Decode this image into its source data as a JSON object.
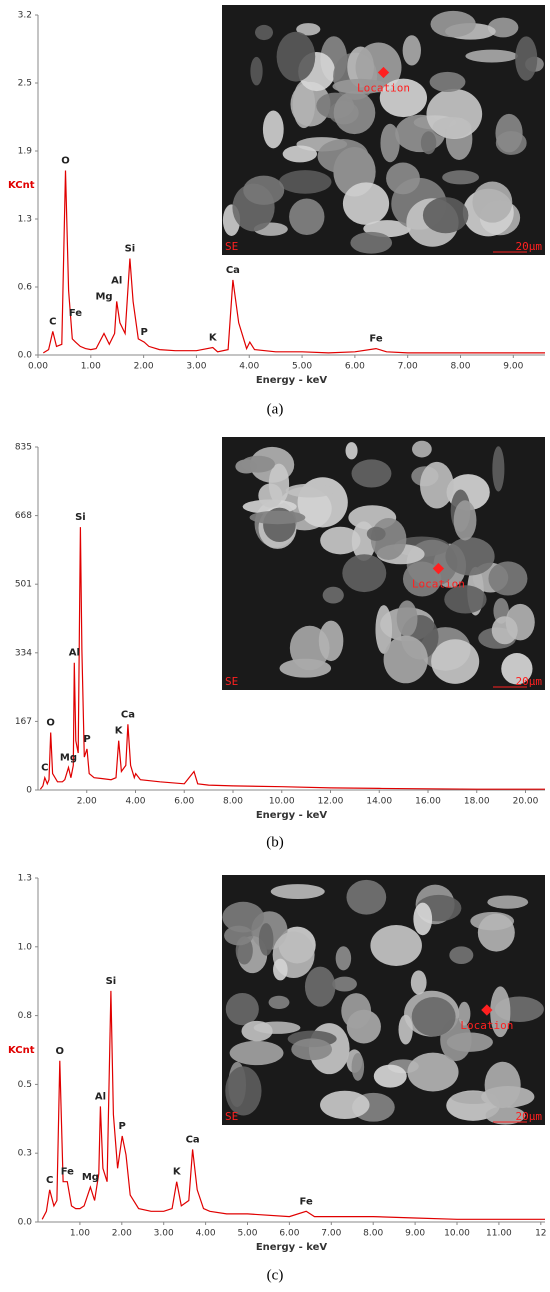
{
  "chart_data": [
    {
      "type": "line",
      "caption": "(a)",
      "x_label": "Energy - keV",
      "y_label": "KCnt",
      "color": "#e00000",
      "xlim": [
        0,
        9.6
      ],
      "ylim": [
        0,
        3.17
      ],
      "xticks": [
        {
          "value": 0,
          "label": "0.00"
        },
        {
          "value": 1,
          "label": "1.00"
        },
        {
          "value": 2,
          "label": "2.00"
        },
        {
          "value": 3,
          "label": "3.00"
        },
        {
          "value": 4,
          "label": "4.00"
        },
        {
          "value": 5,
          "label": "5.00"
        },
        {
          "value": 6,
          "label": "6.00"
        },
        {
          "value": 7,
          "label": "7.00"
        },
        {
          "value": 8,
          "label": "8.00"
        },
        {
          "value": 9,
          "label": "9.00"
        }
      ],
      "yticks": [
        {
          "value": 0,
          "label": "0.0"
        },
        {
          "value": 0.634,
          "label": "0.6"
        },
        {
          "value": 1.268,
          "label": "1.3"
        },
        {
          "value": 1.902,
          "label": "1.9"
        },
        {
          "value": 2.536,
          "label": "2.5"
        },
        {
          "value": 3.17,
          "label": "3.2"
        }
      ],
      "x": [
        0.1,
        0.2,
        0.28,
        0.35,
        0.45,
        0.52,
        0.58,
        0.65,
        0.71,
        0.8,
        0.9,
        1.0,
        1.1,
        1.25,
        1.35,
        1.45,
        1.49,
        1.55,
        1.65,
        1.74,
        1.8,
        1.9,
        2.01,
        2.1,
        2.3,
        2.6,
        3.0,
        3.31,
        3.4,
        3.6,
        3.69,
        3.8,
        3.95,
        4.01,
        4.1,
        4.5,
        5.0,
        5.5,
        6.0,
        6.4,
        6.6,
        7.0,
        8.0,
        9.0,
        9.6
      ],
      "values": [
        0.02,
        0.05,
        0.22,
        0.08,
        0.1,
        1.72,
        0.6,
        0.15,
        0.12,
        0.08,
        0.06,
        0.05,
        0.06,
        0.2,
        0.1,
        0.2,
        0.5,
        0.3,
        0.2,
        0.9,
        0.5,
        0.15,
        0.12,
        0.08,
        0.05,
        0.04,
        0.04,
        0.07,
        0.03,
        0.05,
        0.7,
        0.3,
        0.06,
        0.12,
        0.05,
        0.03,
        0.03,
        0.02,
        0.03,
        0.06,
        0.03,
        0.02,
        0.02,
        0.02,
        0.02
      ],
      "annotations": [
        {
          "text": "C",
          "x": 0.28,
          "y": 0.22
        },
        {
          "text": "O",
          "x": 0.52,
          "y": 1.72
        },
        {
          "text": "Fe",
          "x": 0.71,
          "y": 0.3
        },
        {
          "text": "Mg",
          "x": 1.25,
          "y": 0.45
        },
        {
          "text": "Al",
          "x": 1.49,
          "y": 0.6
        },
        {
          "text": "Si",
          "x": 1.74,
          "y": 0.9
        },
        {
          "text": "P",
          "x": 2.01,
          "y": 0.12
        },
        {
          "text": "K",
          "x": 3.31,
          "y": 0.07
        },
        {
          "text": "Ca",
          "x": 3.69,
          "y": 0.7
        },
        {
          "text": "Fe",
          "x": 6.4,
          "y": 0.06
        }
      ],
      "inset_labels": {
        "marker": "Location",
        "detector": "SE",
        "scale": "20µm"
      }
    },
    {
      "type": "line",
      "caption": "(b)",
      "x_label": "Energy - keV",
      "color": "#e00000",
      "xlim": [
        0,
        20.8
      ],
      "ylim": [
        0,
        835
      ],
      "xticks": [
        {
          "value": 2,
          "label": "2.00"
        },
        {
          "value": 4,
          "label": "4.00"
        },
        {
          "value": 6,
          "label": "6.00"
        },
        {
          "value": 8,
          "label": "8.00"
        },
        {
          "value": 10,
          "label": "10.00"
        },
        {
          "value": 12,
          "label": "12.00"
        },
        {
          "value": 14,
          "label": "14.00"
        },
        {
          "value": 16,
          "label": "16.00"
        },
        {
          "value": 18,
          "label": "18.00"
        },
        {
          "value": 20,
          "label": "20.00"
        }
      ],
      "yticks": [
        0,
        167,
        334,
        501,
        668,
        835
      ],
      "x": [
        0.1,
        0.2,
        0.28,
        0.38,
        0.45,
        0.52,
        0.6,
        0.8,
        1.0,
        1.1,
        1.25,
        1.35,
        1.45,
        1.49,
        1.55,
        1.65,
        1.74,
        1.8,
        1.9,
        2.01,
        2.1,
        2.3,
        2.6,
        3.0,
        3.2,
        3.31,
        3.42,
        3.6,
        3.69,
        3.8,
        3.95,
        4.01,
        4.2,
        5.0,
        6.0,
        6.4,
        6.55,
        7.0,
        8.0,
        10.0,
        12.0,
        14.0,
        16.0,
        18.0,
        20.8
      ],
      "values": [
        2,
        10,
        30,
        15,
        25,
        140,
        40,
        20,
        20,
        25,
        55,
        30,
        60,
        310,
        120,
        90,
        640,
        340,
        80,
        100,
        40,
        30,
        28,
        25,
        30,
        120,
        45,
        60,
        160,
        60,
        30,
        40,
        25,
        20,
        15,
        45,
        15,
        12,
        10,
        8,
        5,
        4,
        3,
        2,
        2
      ],
      "annotations": [
        {
          "text": "C",
          "x": 0.28,
          "y": 30
        },
        {
          "text": "O",
          "x": 0.52,
          "y": 140
        },
        {
          "text": "Mg",
          "x": 1.25,
          "y": 55
        },
        {
          "text": "Al",
          "x": 1.49,
          "y": 310
        },
        {
          "text": "Si",
          "x": 1.74,
          "y": 640
        },
        {
          "text": "P",
          "x": 2.01,
          "y": 100
        },
        {
          "text": "K",
          "x": 3.31,
          "y": 120
        },
        {
          "text": "Ca",
          "x": 3.69,
          "y": 160
        }
      ],
      "inset_labels": {
        "marker": "Location",
        "detector": "SE",
        "scale": "20µm"
      }
    },
    {
      "type": "line",
      "caption": "(c)",
      "x_label": "Energy - keV",
      "y_label": "KCnt",
      "color": "#e00000",
      "xlim": [
        0,
        12.1
      ],
      "ylim": [
        0,
        1.28
      ],
      "xticks": [
        {
          "value": 1,
          "label": "1.00"
        },
        {
          "value": 2,
          "label": "2.00"
        },
        {
          "value": 3,
          "label": "3.00"
        },
        {
          "value": 4,
          "label": "4.00"
        },
        {
          "value": 5,
          "label": "5.00"
        },
        {
          "value": 6,
          "label": "6.00"
        },
        {
          "value": 7,
          "label": "7.00"
        },
        {
          "value": 8,
          "label": "8.00"
        },
        {
          "value": 9,
          "label": "9.00"
        },
        {
          "value": 10,
          "label": "10.00"
        },
        {
          "value": 11,
          "label": "11.00"
        },
        12
      ],
      "yticks": [
        {
          "value": 0,
          "label": "0.0"
        },
        {
          "value": 0.256,
          "label": "0.3"
        },
        {
          "value": 0.512,
          "label": "0.5"
        },
        {
          "value": 0.768,
          "label": "0.8"
        },
        {
          "value": 1.024,
          "label": "1.0"
        },
        {
          "value": 1.28,
          "label": "1.3"
        }
      ],
      "x": [
        0.1,
        0.2,
        0.28,
        0.38,
        0.45,
        0.52,
        0.6,
        0.7,
        0.8,
        0.9,
        1.0,
        1.1,
        1.25,
        1.35,
        1.45,
        1.49,
        1.55,
        1.65,
        1.74,
        1.8,
        1.9,
        2.01,
        2.1,
        2.2,
        2.4,
        2.7,
        3.0,
        3.2,
        3.31,
        3.42,
        3.6,
        3.69,
        3.8,
        3.95,
        4.1,
        4.5,
        5.0,
        6.0,
        6.4,
        6.6,
        7.0,
        8.0,
        9.0,
        10.0,
        11.0,
        12.1
      ],
      "values": [
        0.01,
        0.04,
        0.12,
        0.06,
        0.08,
        0.6,
        0.15,
        0.15,
        0.06,
        0.05,
        0.05,
        0.06,
        0.13,
        0.08,
        0.18,
        0.43,
        0.2,
        0.15,
        0.86,
        0.4,
        0.2,
        0.32,
        0.25,
        0.1,
        0.05,
        0.04,
        0.04,
        0.05,
        0.15,
        0.06,
        0.08,
        0.27,
        0.12,
        0.05,
        0.04,
        0.03,
        0.03,
        0.02,
        0.04,
        0.02,
        0.02,
        0.02,
        0.015,
        0.01,
        0.01,
        0.01
      ],
      "annotations": [
        {
          "text": "C",
          "x": 0.28,
          "y": 0.12
        },
        {
          "text": "O",
          "x": 0.52,
          "y": 0.6
        },
        {
          "text": "Fe",
          "x": 0.7,
          "y": 0.15
        },
        {
          "text": "Mg",
          "x": 1.25,
          "y": 0.13
        },
        {
          "text": "Al",
          "x": 1.49,
          "y": 0.43
        },
        {
          "text": "Si",
          "x": 1.74,
          "y": 0.86
        },
        {
          "text": "P",
          "x": 2.01,
          "y": 0.32
        },
        {
          "text": "K",
          "x": 3.31,
          "y": 0.15
        },
        {
          "text": "Ca",
          "x": 3.69,
          "y": 0.27
        },
        {
          "text": "Fe",
          "x": 6.4,
          "y": 0.04
        }
      ],
      "inset_labels": {
        "marker": "Location",
        "detector": "SE",
        "scale": "20µm"
      }
    }
  ]
}
